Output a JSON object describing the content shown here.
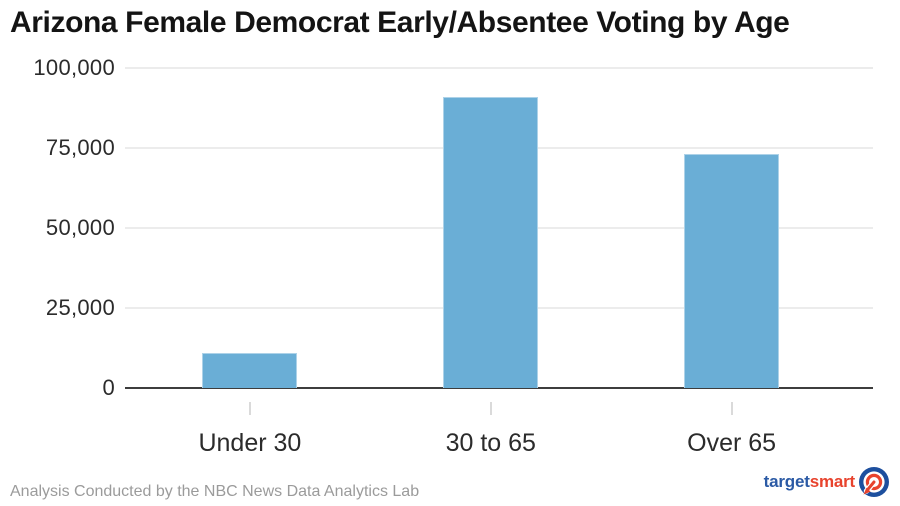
{
  "title": "Arizona Female Democrat Early/Absentee Voting by Age",
  "footer": {
    "credit": "Analysis Conducted by the NBC News Data Analytics Lab"
  },
  "logo": {
    "part1": "target",
    "part2": "smart",
    "icon": "bullseye-arrow-icon",
    "blue": "#2b5aa5",
    "red": "#e8432d"
  },
  "chart_data": {
    "type": "bar",
    "title": "Arizona Female Democrat Early/Absentee Voting by Age",
    "categories": [
      "Under 30",
      "30 to 65",
      "Over 65"
    ],
    "values": [
      11000,
      91000,
      73000
    ],
    "xlabel": "",
    "ylabel": "",
    "ylim": [
      0,
      100000
    ],
    "yticks": [
      {
        "value": 100000,
        "label": "100,000"
      },
      {
        "value": 75000,
        "label": "75,000"
      },
      {
        "value": 50000,
        "label": "50,000"
      },
      {
        "value": 25000,
        "label": "25,000"
      },
      {
        "value": 0,
        "label": "0"
      }
    ],
    "grid": true,
    "legend_position": "none",
    "bar_color": "#6aaed6"
  }
}
